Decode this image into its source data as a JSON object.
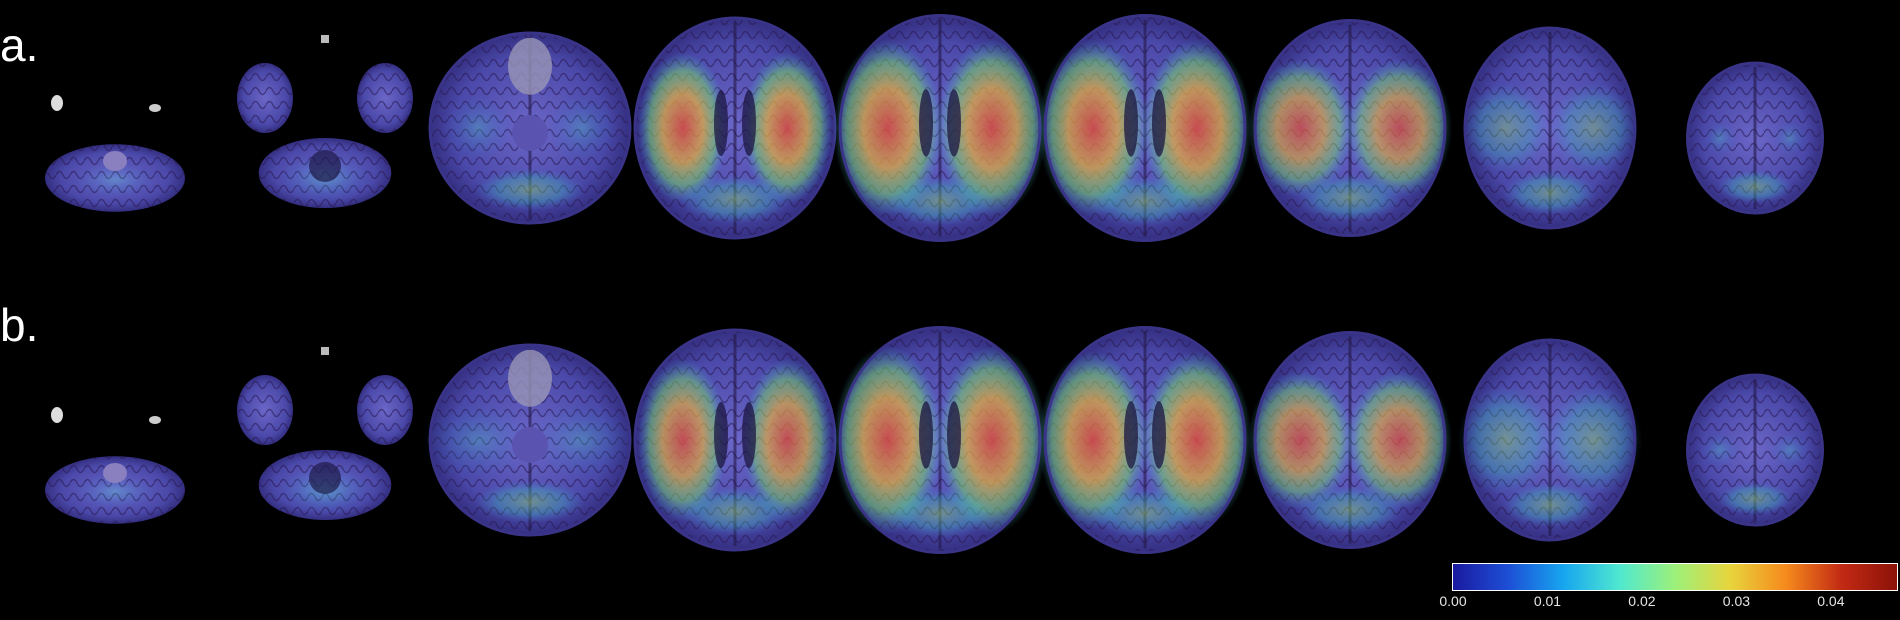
{
  "rows": [
    {
      "label": "a.",
      "slices": [
        [
          0.0,
          0.15,
          0.05
        ],
        [
          0.0,
          0.2,
          0.1
        ],
        [
          0.1,
          0.25,
          0.25
        ],
        [
          0.85,
          0.35,
          0.6
        ],
        [
          0.85,
          0.45,
          0.7
        ],
        [
          0.85,
          0.45,
          0.7
        ],
        [
          0.75,
          0.45,
          0.55
        ],
        [
          0.45,
          0.4,
          0.35
        ],
        [
          0.05,
          0.1,
          0.1
        ]
      ]
    },
    {
      "label": "b.",
      "slices": [
        [
          0.0,
          0.3,
          0.1
        ],
        [
          0.0,
          0.35,
          0.2
        ],
        [
          0.05,
          0.45,
          0.3
        ],
        [
          0.8,
          0.35,
          0.65
        ],
        [
          0.85,
          0.45,
          0.75
        ],
        [
          0.85,
          0.45,
          0.7
        ],
        [
          0.75,
          0.45,
          0.55
        ],
        [
          0.5,
          0.45,
          0.45
        ],
        [
          0.05,
          0.15,
          0.1
        ]
      ]
    }
  ],
  "colorbar": {
    "min": 0.0,
    "max": 0.047,
    "ticks": [
      "0.00",
      "0.01",
      "0.02",
      "0.03",
      "0.04"
    ],
    "tick_values": [
      0.0,
      0.01,
      0.02,
      0.03,
      0.04
    ],
    "colors": [
      "#1a1aa0",
      "#1d4fd6",
      "#17a6ef",
      "#4fe8d0",
      "#9cf07a",
      "#e8d43c",
      "#f58a1c",
      "#c22a14",
      "#8c1208"
    ]
  }
}
